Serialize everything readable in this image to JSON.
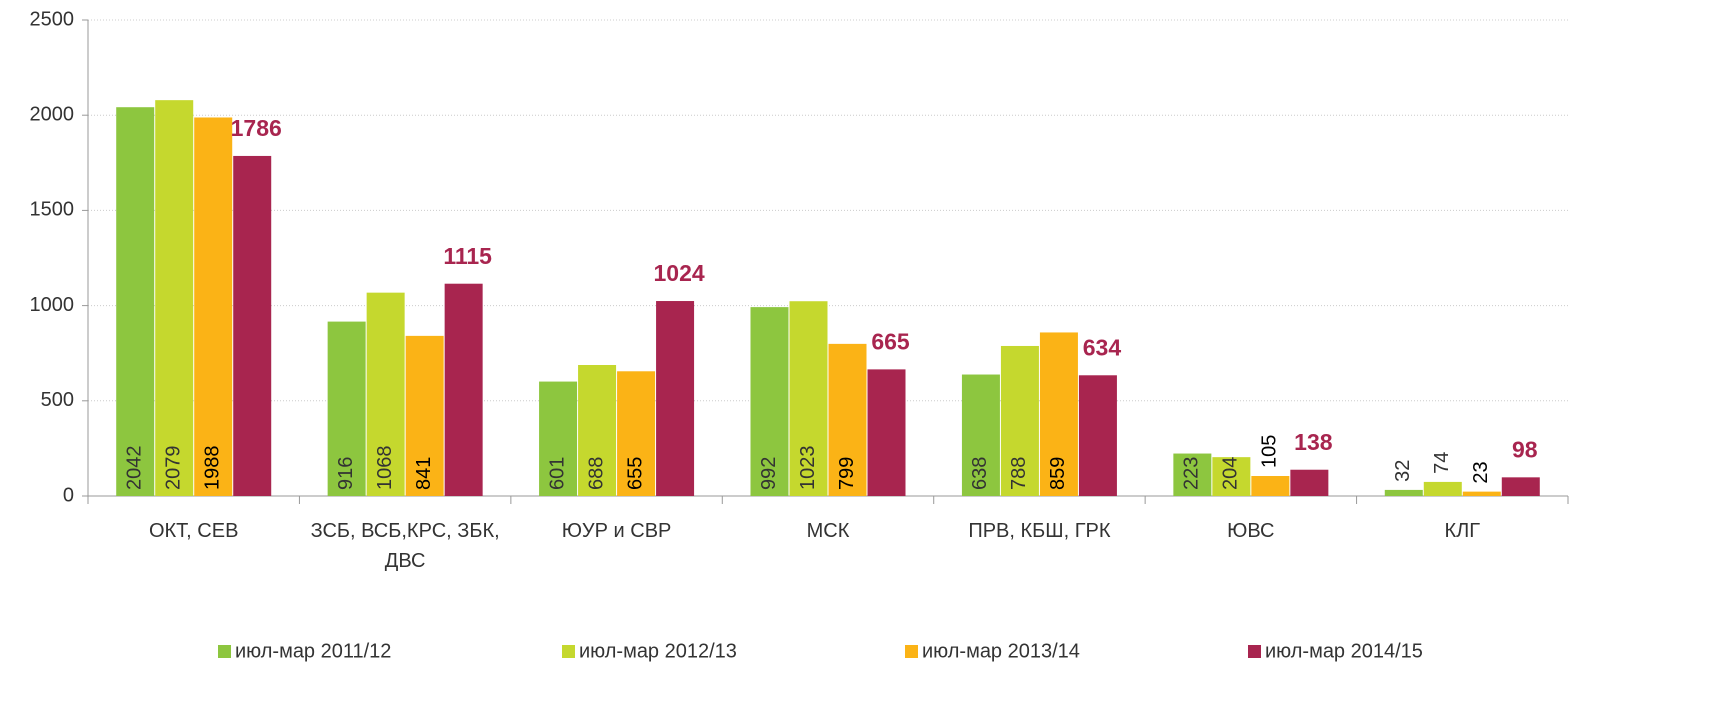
{
  "chart_data": {
    "type": "bar",
    "categories": [
      "ОКТ, СЕВ",
      "ЗСБ, ВСБ,КРС, ЗБК, ДВС",
      "ЮУР и СВР",
      "МСК",
      "ПРВ, КБШ, ГРК",
      "ЮВС",
      "КЛГ"
    ],
    "series": [
      {
        "name": "июл-мар 2011/12",
        "color": "#8dc63f",
        "values": [
          2042,
          916,
          601,
          992,
          638,
          223,
          32
        ]
      },
      {
        "name": "июл-мар 2012/13",
        "color": "#c5d82e",
        "values": [
          2079,
          1068,
          688,
          1023,
          788,
          204,
          74
        ]
      },
      {
        "name": "июл-мар 2013/14",
        "color": "#fbb316",
        "values": [
          1988,
          841,
          655,
          799,
          859,
          105,
          23
        ]
      },
      {
        "name": "июл-мар 2014/15",
        "color": "#a8254f",
        "values": [
          1786,
          1115,
          1024,
          665,
          634,
          138,
          98
        ]
      }
    ],
    "ylim": [
      0,
      2500
    ],
    "yticks": [
      0,
      500,
      1000,
      1500,
      2000,
      2500
    ],
    "grid": true,
    "legend": "bottom"
  }
}
